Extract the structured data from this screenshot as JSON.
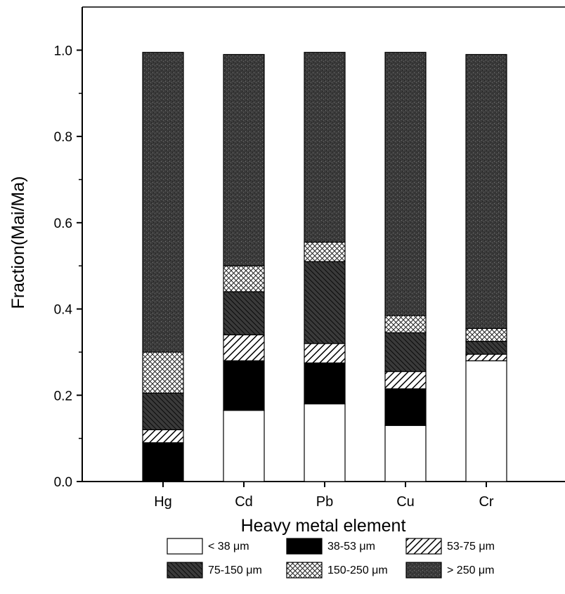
{
  "chart_data": {
    "type": "bar",
    "stacked": true,
    "xlabel": "Heavy metal element",
    "ylabel": "Fraction(Mai/Ma)",
    "ylim": [
      0,
      1.1
    ],
    "yticks": [
      "0.0",
      "0.2",
      "0.4",
      "0.6",
      "0.8",
      "1.0"
    ],
    "categories": [
      "Hg",
      "Cd",
      "Pb",
      "Cu",
      "Cr"
    ],
    "grid": false,
    "legend_position": "bottom",
    "series": [
      {
        "name": "< 38 μm",
        "pattern": "white",
        "values": [
          0.0,
          0.165,
          0.18,
          0.13,
          0.28
        ]
      },
      {
        "name": "38-53 μm",
        "pattern": "black",
        "values": [
          0.09,
          0.115,
          0.095,
          0.085,
          0.0
        ]
      },
      {
        "name": "53-75 μm",
        "pattern": "hatch-forward",
        "values": [
          0.03,
          0.06,
          0.045,
          0.04,
          0.015
        ]
      },
      {
        "name": "75-150 μm",
        "pattern": "hatch-back-dark",
        "values": [
          0.085,
          0.1,
          0.19,
          0.09,
          0.03
        ]
      },
      {
        "name": "150-250 μm",
        "pattern": "crosshatch",
        "values": [
          0.095,
          0.06,
          0.045,
          0.04,
          0.03
        ]
      },
      {
        "name": "> 250 μm",
        "pattern": "dark-stipple",
        "values": [
          0.695,
          0.49,
          0.44,
          0.61,
          0.635
        ]
      }
    ]
  }
}
